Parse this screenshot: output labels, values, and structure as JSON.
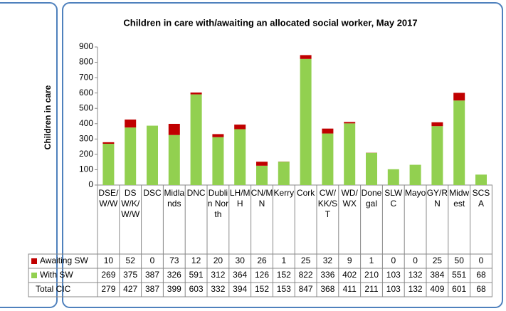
{
  "chart_data": {
    "type": "stacked_bar",
    "title": "Children in care with/awaiting  an allocated social worker, May 2017",
    "y_label": "Children in care",
    "categories": [
      "DSE/W/W",
      "DSW/K/W/W",
      "DSC",
      "Midlands",
      "DNC",
      "Dublin North",
      "LH/MH",
      "CN/MN",
      "Kerry",
      "Cork",
      "CW/KK/ST",
      "WD/WX",
      "Donegal",
      "SLWC",
      "Mayo",
      "GY/RN",
      "Midwest",
      "SCSA"
    ],
    "series": [
      {
        "name": "With SW",
        "color": "#92d050",
        "values": [
          269,
          375,
          387,
          326,
          591,
          312,
          364,
          126,
          152,
          822,
          336,
          402,
          210,
          103,
          132,
          384,
          551,
          68
        ]
      },
      {
        "name": "Awaiting SW",
        "color": "#c00000",
        "values": [
          10,
          52,
          0,
          73,
          12,
          20,
          30,
          26,
          1,
          25,
          32,
          9,
          1,
          0,
          0,
          25,
          50,
          0
        ]
      }
    ],
    "total": {
      "name": "Total CIC",
      "values": [
        279,
        427,
        387,
        399,
        603,
        332,
        394,
        152,
        153,
        847,
        368,
        411,
        211,
        103,
        132,
        409,
        601,
        68
      ]
    },
    "ylim": [
      0,
      900
    ],
    "yticks": [
      0,
      100,
      200,
      300,
      400,
      500,
      600,
      700,
      800,
      900
    ]
  }
}
